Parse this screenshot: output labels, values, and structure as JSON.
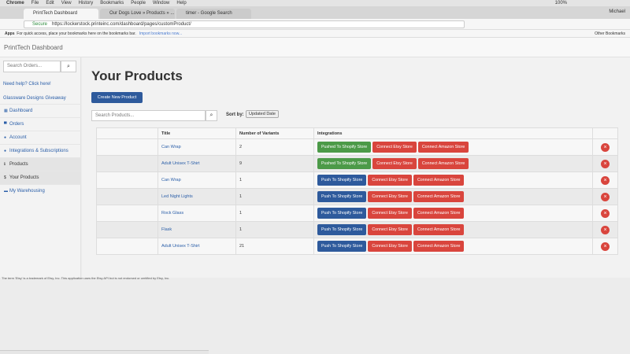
{
  "menu_bar": {
    "items": [
      "Chrome",
      "File",
      "Edit",
      "View",
      "History",
      "Bookmarks",
      "People",
      "Window",
      "Help"
    ],
    "battery": "100%"
  },
  "tabs": [
    {
      "label": "PrintTech Dashboard",
      "active": true
    },
    {
      "label": "Our Dogs Love » Products » ...",
      "active": false
    },
    {
      "label": "timer - Google Search",
      "active": false
    }
  ],
  "profile": "Michael",
  "address_bar": {
    "secure": "Secure",
    "url": "https://lockerstock.printeinc.com/dashboard/pages/customProduct/"
  },
  "bookmarks_bar": {
    "apps": "Apps",
    "hint": "For quick access, place your bookmarks here on the bookmarks bar.",
    "import": "Import bookmarks now...",
    "other": "Other Bookmarks"
  },
  "app": {
    "brand": "PrintTech Dashboard",
    "sidebar": {
      "search_placeholder": "Search Orders...",
      "links": [
        "Need help? Click here!",
        "Glassware Designs Giveaway"
      ],
      "nav": [
        {
          "icon": "▦",
          "label": "Dashboard",
          "active": false
        },
        {
          "icon": "▀",
          "label": "Orders",
          "active": false
        },
        {
          "icon": "●",
          "label": "Account",
          "active": false
        },
        {
          "icon": "●",
          "label": "Integrations & Subscriptions",
          "active": false
        },
        {
          "icon": "ℹ",
          "label": "Products",
          "active": true
        },
        {
          "icon": "$",
          "label": "Your Products",
          "active": true
        },
        {
          "icon": "▬",
          "label": "My Warehousing",
          "active": false
        }
      ]
    },
    "title": "Your Products",
    "create_button": "Create New Product",
    "search_placeholder": "Search Products...",
    "sort_label": "Sort by:",
    "sort_value": "Updated Date",
    "table": {
      "headers": [
        "Title",
        "Number of Variants",
        "Integrations"
      ],
      "rows": [
        {
          "title": "Can Wrap",
          "variants": "2",
          "shopify": "Pushed To Shopify Store",
          "shopify_color": "#4c9a48",
          "etsy": "Connect Etsy Store",
          "amazon": "Connect Amazon Store"
        },
        {
          "title": "Adult Unisex T-Shirt",
          "variants": "9",
          "shopify": "Pushed To Shopify Store",
          "shopify_color": "#4c9a48",
          "etsy": "Connect Etsy Store",
          "amazon": "Connect Amazon Store"
        },
        {
          "title": "Can Wrap",
          "variants": "1",
          "shopify": "Push To Shopify Store",
          "shopify_color": "#2e5a9c",
          "etsy": "Connect Etsy Store",
          "amazon": "Connect Amazon Store"
        },
        {
          "title": "Led Night Lights",
          "variants": "1",
          "shopify": "Push To Shopify Store",
          "shopify_color": "#2e5a9c",
          "etsy": "Connect Etsy Store",
          "amazon": "Connect Amazon Store"
        },
        {
          "title": "Rock Glass",
          "variants": "1",
          "shopify": "Push To Shopify Store",
          "shopify_color": "#2e5a9c",
          "etsy": "Connect Etsy Store",
          "amazon": "Connect Amazon Store"
        },
        {
          "title": "Flask",
          "variants": "1",
          "shopify": "Push To Shopify Store",
          "shopify_color": "#2e5a9c",
          "etsy": "Connect Etsy Store",
          "amazon": "Connect Amazon Store"
        },
        {
          "title": "Adult Unisex T-Shirt",
          "variants": "21",
          "shopify": "Push To Shopify Store",
          "shopify_color": "#2e5a9c",
          "etsy": "Connect Etsy Store",
          "amazon": "Connect Amazon Store"
        }
      ]
    },
    "footer": "The term 'Etsy' is a trademark of Etsy, Inc. This application uses the Etsy API but is not endorsed or certified by Etsy, Inc."
  }
}
